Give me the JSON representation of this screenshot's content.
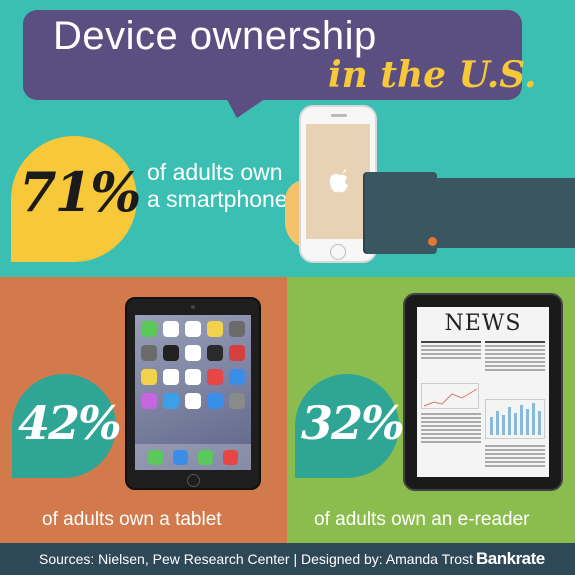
{
  "title": {
    "line1": "Device ownership",
    "line2": "in the U.S."
  },
  "smartphone": {
    "percent": "71%",
    "desc_line1": "of adults own",
    "desc_line2": "a smartphone"
  },
  "tablet": {
    "percent": "42%",
    "desc": "of adults own a tablet"
  },
  "ereader": {
    "percent": "32%",
    "desc": "of adults own an e-reader",
    "screen_title": "NEWS"
  },
  "footer": {
    "sources": "Sources: Nielsen, Pew Research Center |  Designed by: Amanda Trost",
    "brand": "Bankrate"
  },
  "colors": {
    "teal_background": "#3cbfb3",
    "purple_bubble": "#5b4e81",
    "yellow_accent": "#f6c83a",
    "orange_panel": "#d27a4c",
    "green_panel": "#8bbd4e",
    "stat_bubble": "#2ea595",
    "footer": "#2f4858"
  },
  "icons": [
    "apple-logo-icon",
    "smartphone-illustration",
    "tablet-illustration",
    "ereader-illustration"
  ]
}
